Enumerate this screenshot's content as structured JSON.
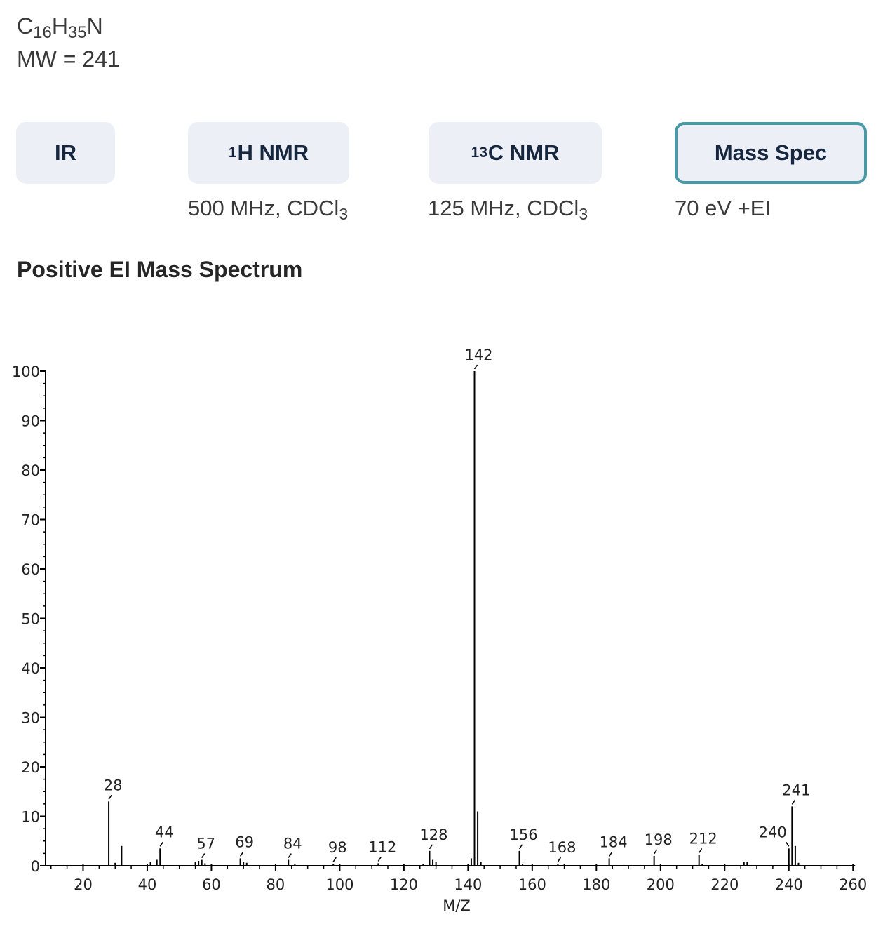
{
  "formula": {
    "c": "C",
    "c_count": "16",
    "h": "H",
    "h_count": "35",
    "n": "N"
  },
  "mw": "MW = 241",
  "tabs": [
    {
      "label": "IR",
      "active": false
    },
    {
      "sup": "1",
      "label": "H NMR",
      "active": false,
      "cond": "500 MHz, CDCl",
      "cond_sub": "3"
    },
    {
      "sup": "13",
      "label": "C NMR",
      "active": false,
      "cond": "125 MHz, CDCl",
      "cond_sub": "3"
    },
    {
      "label": "Mass Spec",
      "active": true,
      "cond": "70 eV +EI"
    }
  ],
  "section_title": "Positive EI Mass Spectrum",
  "colors": {
    "accent": "#4a9aa6",
    "tab_bg": "#ecf0f6",
    "tab_text": "#16273f"
  },
  "chart_data": {
    "type": "bar",
    "xlabel": "M/Z",
    "xlim": [
      10,
      260
    ],
    "ylim": [
      0,
      100
    ],
    "xticks": [
      20,
      40,
      60,
      80,
      100,
      120,
      140,
      160,
      180,
      200,
      220,
      240,
      260
    ],
    "yticks": [
      0,
      10,
      20,
      30,
      40,
      50,
      60,
      70,
      80,
      90,
      100
    ],
    "peaks": [
      {
        "mz": 28,
        "intensity": 13
      },
      {
        "mz": 30,
        "intensity": 0.6
      },
      {
        "mz": 32,
        "intensity": 4
      },
      {
        "mz": 41,
        "intensity": 0.8
      },
      {
        "mz": 43,
        "intensity": 1.2
      },
      {
        "mz": 44,
        "intensity": 3.5
      },
      {
        "mz": 55,
        "intensity": 0.8
      },
      {
        "mz": 56,
        "intensity": 1.0
      },
      {
        "mz": 57,
        "intensity": 1.2
      },
      {
        "mz": 58,
        "intensity": 0.5
      },
      {
        "mz": 69,
        "intensity": 1.5
      },
      {
        "mz": 70,
        "intensity": 0.8
      },
      {
        "mz": 71,
        "intensity": 0.6
      },
      {
        "mz": 84,
        "intensity": 1.2
      },
      {
        "mz": 86,
        "intensity": 0.3
      },
      {
        "mz": 98,
        "intensity": 0.4
      },
      {
        "mz": 112,
        "intensity": 0.5
      },
      {
        "mz": 126,
        "intensity": 0.3
      },
      {
        "mz": 128,
        "intensity": 3.0
      },
      {
        "mz": 129,
        "intensity": 1.2
      },
      {
        "mz": 130,
        "intensity": 0.8
      },
      {
        "mz": 141,
        "intensity": 1.5
      },
      {
        "mz": 142,
        "intensity": 100
      },
      {
        "mz": 143,
        "intensity": 11
      },
      {
        "mz": 144,
        "intensity": 0.8
      },
      {
        "mz": 156,
        "intensity": 3.0
      },
      {
        "mz": 157,
        "intensity": 0.4
      },
      {
        "mz": 168,
        "intensity": 0.4
      },
      {
        "mz": 170,
        "intensity": 0.3
      },
      {
        "mz": 184,
        "intensity": 1.5
      },
      {
        "mz": 198,
        "intensity": 2.0
      },
      {
        "mz": 212,
        "intensity": 2.2
      },
      {
        "mz": 213,
        "intensity": 0.3
      },
      {
        "mz": 226,
        "intensity": 0.8
      },
      {
        "mz": 227,
        "intensity": 0.8
      },
      {
        "mz": 240,
        "intensity": 3.5
      },
      {
        "mz": 241,
        "intensity": 12
      },
      {
        "mz": 242,
        "intensity": 4
      },
      {
        "mz": 243,
        "intensity": 0.6
      }
    ],
    "annotations": [
      {
        "mz": 28,
        "label": "28"
      },
      {
        "mz": 44,
        "label": "44"
      },
      {
        "mz": 57,
        "label": "57"
      },
      {
        "mz": 69,
        "label": "69"
      },
      {
        "mz": 84,
        "label": "84"
      },
      {
        "mz": 98,
        "label": "98"
      },
      {
        "mz": 112,
        "label": "112"
      },
      {
        "mz": 128,
        "label": "128"
      },
      {
        "mz": 142,
        "label": "142"
      },
      {
        "mz": 156,
        "label": "156"
      },
      {
        "mz": 168,
        "label": "168"
      },
      {
        "mz": 184,
        "label": "184"
      },
      {
        "mz": 198,
        "label": "198"
      },
      {
        "mz": 212,
        "label": "212"
      },
      {
        "mz": 240,
        "label": "240"
      },
      {
        "mz": 241,
        "label": "241"
      }
    ]
  }
}
